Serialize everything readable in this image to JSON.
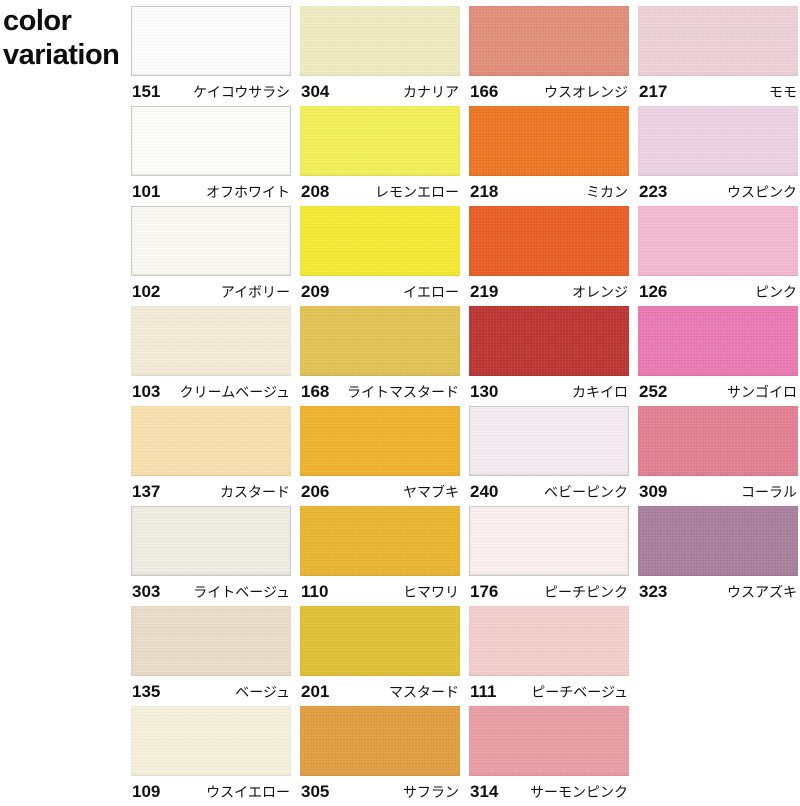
{
  "header": {
    "line1": "color",
    "line2": "variation"
  },
  "swatches": [
    {
      "code": "151",
      "name": "ケイコウサラシ",
      "color": "#fdfdfd",
      "border": true,
      "col": 1,
      "row": 1
    },
    {
      "code": "304",
      "name": "カナリア",
      "color": "#eeebc0",
      "border": false,
      "col": 2,
      "row": 1
    },
    {
      "code": "166",
      "name": "ウスオレンジ",
      "color": "#e08d79",
      "border": false,
      "col": 3,
      "row": 1
    },
    {
      "code": "217",
      "name": "モモ",
      "color": "#edd0d7",
      "border": false,
      "col": 4,
      "row": 1
    },
    {
      "code": "101",
      "name": "オフホワイト",
      "color": "#fcfcf9",
      "border": true,
      "col": 1,
      "row": 2
    },
    {
      "code": "208",
      "name": "レモンエロー",
      "color": "#f2ef55",
      "border": false,
      "col": 2,
      "row": 2
    },
    {
      "code": "218",
      "name": "ミカン",
      "color": "#ec7523",
      "border": false,
      "col": 3,
      "row": 2
    },
    {
      "code": "223",
      "name": "ウスピンク",
      "color": "#ebd2e2",
      "border": false,
      "col": 4,
      "row": 2
    },
    {
      "code": "102",
      "name": "アイボリー",
      "color": "#faf9f2",
      "border": true,
      "col": 1,
      "row": 3
    },
    {
      "code": "209",
      "name": "イエロー",
      "color": "#f5e932",
      "border": false,
      "col": 2,
      "row": 3
    },
    {
      "code": "219",
      "name": "オレンジ",
      "color": "#e95d24",
      "border": false,
      "col": 3,
      "row": 3
    },
    {
      "code": "126",
      "name": "ピンク",
      "color": "#f3b9d1",
      "border": false,
      "col": 4,
      "row": 3
    },
    {
      "code": "103",
      "name": "クリームベージュ",
      "color": "#f3ead7",
      "border": false,
      "col": 1,
      "row": 4
    },
    {
      "code": "168",
      "name": "ライトマスタード",
      "color": "#e2c254",
      "border": false,
      "col": 2,
      "row": 4
    },
    {
      "code": "130",
      "name": "カキイロ",
      "color": "#bb3431",
      "border": false,
      "col": 3,
      "row": 4
    },
    {
      "code": "252",
      "name": "サンゴイロ",
      "color": "#ea79b2",
      "border": false,
      "col": 4,
      "row": 4
    },
    {
      "code": "137",
      "name": "カスタード",
      "color": "#f8dfae",
      "border": false,
      "col": 1,
      "row": 5
    },
    {
      "code": "206",
      "name": "ヤマブキ",
      "color": "#eeb22c",
      "border": false,
      "col": 2,
      "row": 5
    },
    {
      "code": "240",
      "name": "ベビーピンク",
      "color": "#f4ebf0",
      "border": true,
      "col": 3,
      "row": 5
    },
    {
      "code": "309",
      "name": "コーラル",
      "color": "#e27f92",
      "border": false,
      "col": 4,
      "row": 5
    },
    {
      "code": "303",
      "name": "ライトベージュ",
      "color": "#efece3",
      "border": true,
      "col": 1,
      "row": 6
    },
    {
      "code": "110",
      "name": "ヒマワリ",
      "color": "#e8b52f",
      "border": false,
      "col": 2,
      "row": 6
    },
    {
      "code": "176",
      "name": "ピーチピンク",
      "color": "#f9efee",
      "border": true,
      "col": 3,
      "row": 6
    },
    {
      "code": "323",
      "name": "ウスアズキ",
      "color": "#a87e9d",
      "border": false,
      "col": 4,
      "row": 6
    },
    {
      "code": "135",
      "name": "ベージュ",
      "color": "#e9dcc7",
      "border": false,
      "col": 1,
      "row": 7
    },
    {
      "code": "201",
      "name": "マスタード",
      "color": "#e0c034",
      "border": false,
      "col": 2,
      "row": 7
    },
    {
      "code": "111",
      "name": "ピーチベージュ",
      "color": "#f3cdcc",
      "border": false,
      "col": 3,
      "row": 7
    },
    {
      "code": "109",
      "name": "ウスイエロー",
      "color": "#f5f0da",
      "border": false,
      "col": 1,
      "row": 8
    },
    {
      "code": "305",
      "name": "サフラン",
      "color": "#e19d40",
      "border": false,
      "col": 2,
      "row": 8
    },
    {
      "code": "314",
      "name": "サーモンピンク",
      "color": "#e99ca4",
      "border": false,
      "col": 3,
      "row": 8
    }
  ]
}
